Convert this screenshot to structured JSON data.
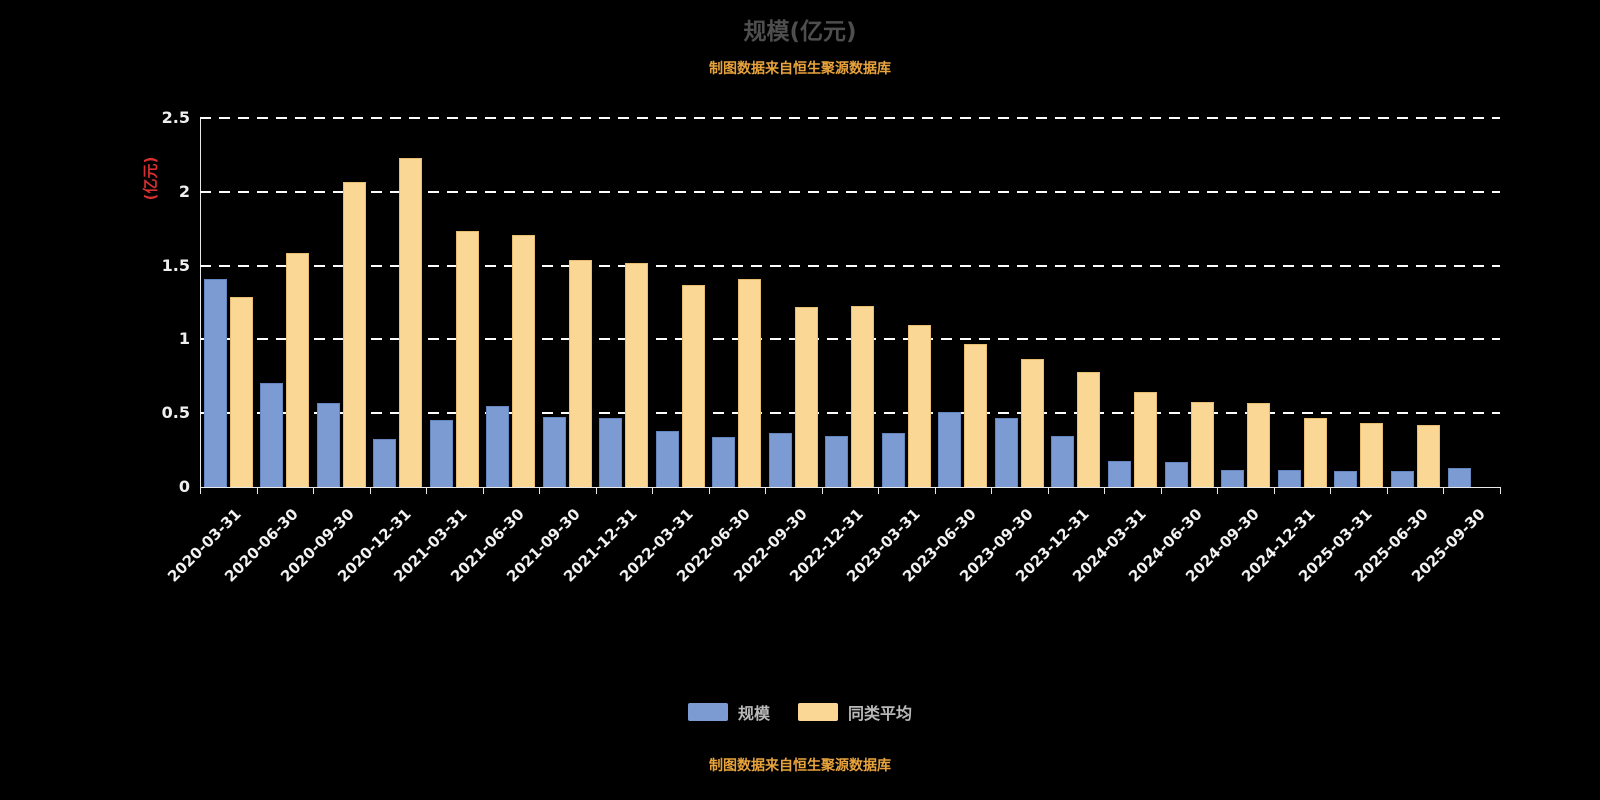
{
  "header": {
    "title": "规模(亿元)",
    "subtitle": "制图数据来自恒生聚源数据库"
  },
  "footer": {
    "source": "制图数据来自恒生聚源数据库"
  },
  "legend": {
    "items": [
      {
        "label": "规模",
        "color": "#7b9bd2"
      },
      {
        "label": "同类平均",
        "color": "#fad795"
      }
    ]
  },
  "colors": {
    "background": "#000000",
    "axis": "#e8e8e8",
    "grid": "#fdfdfd",
    "title": "#4e4e4e",
    "accent_orange": "#e8a33c",
    "y_name_red": "#d63031"
  },
  "chart_data": {
    "type": "bar",
    "title": "规模(亿元)",
    "ylabel": "(亿元)",
    "xlabel": "",
    "ylim": [
      0,
      2.5
    ],
    "grid": "dashed-horizontal",
    "legend_position": "bottom",
    "yticks": [
      {
        "value": 0,
        "label": "0"
      },
      {
        "value": 0.5,
        "label": "0.5"
      },
      {
        "value": 1,
        "label": "1"
      },
      {
        "value": 1.5,
        "label": "1.5"
      },
      {
        "value": 2,
        "label": "2"
      },
      {
        "value": 2.5,
        "label": "2.5"
      }
    ],
    "categories": [
      "2020-03-31",
      "2020-06-30",
      "2020-09-30",
      "2020-12-31",
      "2021-03-31",
      "2021-06-30",
      "2021-09-30",
      "2021-12-31",
      "2022-03-31",
      "2022-06-30",
      "2022-09-30",
      "2022-12-31",
      "2023-03-31",
      "2023-06-30",
      "2023-09-30",
      "2023-12-31",
      "2024-03-31",
      "2024-06-30",
      "2024-09-30",
      "2024-12-31",
      "2025-03-31",
      "2025-06-30",
      "2025-09-30"
    ],
    "series": [
      {
        "name": "规模",
        "color": "#7b9bd2",
        "values": [
          1.4,
          0.7,
          0.56,
          0.32,
          0.45,
          0.54,
          0.47,
          0.46,
          0.37,
          0.33,
          0.36,
          0.34,
          0.36,
          0.5,
          0.46,
          0.34,
          0.17,
          0.16,
          0.11,
          0.11,
          0.1,
          0.1,
          0.12
        ]
      },
      {
        "name": "同类平均",
        "color": "#fad795",
        "values": [
          1.28,
          1.58,
          2.06,
          2.22,
          1.73,
          1.7,
          1.53,
          1.51,
          1.36,
          1.4,
          1.21,
          1.22,
          1.09,
          0.96,
          0.86,
          0.77,
          0.64,
          0.57,
          0.56,
          0.46,
          0.43,
          0.41,
          0
        ]
      }
    ]
  }
}
